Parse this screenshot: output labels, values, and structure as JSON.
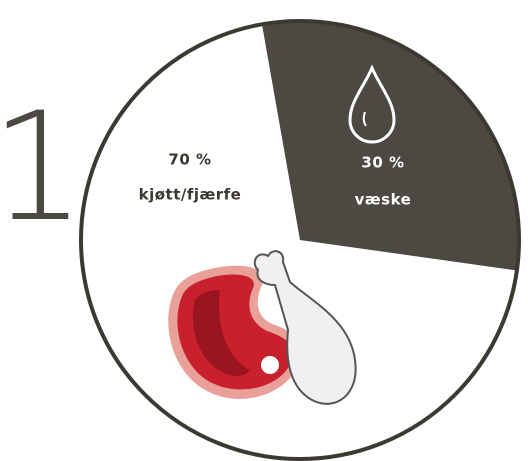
{
  "step_number": "1",
  "chart_data": {
    "type": "pie",
    "categories": [
      "kjøtt/fjærfe",
      "væske"
    ],
    "values": [
      70,
      30
    ],
    "value_labels": [
      "70 %",
      "30 %"
    ],
    "colors": [
      "#ffffff",
      "#4b4941"
    ]
  }
}
